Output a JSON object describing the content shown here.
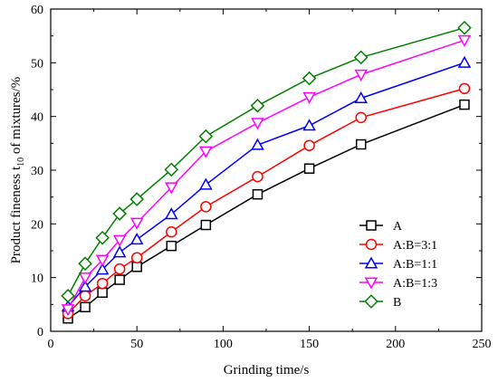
{
  "chart_data": {
    "type": "line",
    "xlabel": "Grinding time/s",
    "ylabel_main": "Product fineness t",
    "ylabel_sub": "10",
    "ylabel_rest": " of mixtures/%",
    "xlim": [
      0,
      250
    ],
    "ylim": [
      0,
      60
    ],
    "xticks": [
      0,
      50,
      100,
      150,
      200,
      250
    ],
    "yticks": [
      0,
      10,
      20,
      30,
      40,
      50,
      60
    ],
    "grid": false,
    "legend_position": "bottom-right",
    "x": [
      10,
      20,
      30,
      40,
      50,
      70,
      90,
      120,
      150,
      180,
      240
    ],
    "series": [
      {
        "name": "A",
        "marker": "square",
        "color": "#000000",
        "values": [
          2.4,
          4.5,
          7.2,
          9.6,
          12.0,
          15.9,
          19.8,
          25.5,
          30.3,
          34.8,
          42.2
        ]
      },
      {
        "name": "A:B=3:1",
        "marker": "circle",
        "color": "#ff0000",
        "values": [
          3.3,
          6.6,
          8.9,
          11.6,
          13.7,
          18.5,
          23.2,
          28.8,
          34.6,
          39.8,
          45.2
        ]
      },
      {
        "name": "A:B=1:1",
        "marker": "triangle-up",
        "color": "#0000ff",
        "values": [
          4.6,
          8.3,
          11.5,
          14.7,
          17.1,
          21.8,
          27.3,
          34.7,
          38.3,
          43.4,
          50.0
        ]
      },
      {
        "name": "A:B=1:3",
        "marker": "triangle-down",
        "color": "#ff00ff",
        "values": [
          4.1,
          10.0,
          13.3,
          17.0,
          20.2,
          26.8,
          33.5,
          38.8,
          43.6,
          47.8,
          54.2
        ]
      },
      {
        "name": "B",
        "marker": "diamond",
        "color": "#008000",
        "values": [
          6.6,
          12.6,
          17.4,
          21.9,
          24.6,
          30.1,
          36.3,
          42.0,
          47.1,
          51.0,
          56.5
        ]
      }
    ]
  }
}
